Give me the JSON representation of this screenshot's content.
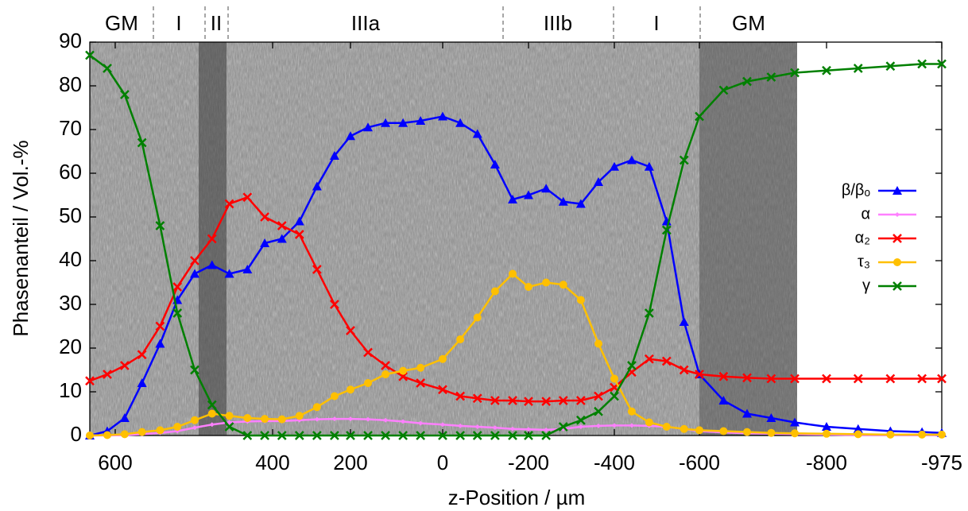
{
  "chart_data": {
    "type": "line",
    "zones": [
      "GM",
      "I",
      "II",
      "IIIa",
      "IIIb",
      "I",
      "GM"
    ],
    "xlabel": "z-Position / µm",
    "ylabel": "Phasenanteil / Vol.-%",
    "xlim": [
      632,
      -975
    ],
    "xticks": [
      600,
      400,
      200,
      0,
      -200,
      -400,
      -600,
      -800,
      -975
    ],
    "ylim": [
      0,
      90
    ],
    "yticks": [
      0,
      10,
      20,
      30,
      40,
      50,
      60,
      70,
      80,
      90
    ],
    "legend": "right",
    "x": [
      632,
      610,
      588,
      566,
      543,
      521,
      499,
      477,
      455,
      432,
      410,
      376,
      331,
      286,
      241,
      200,
      162,
      124,
      86,
      48,
      0,
      -41,
      -81,
      -122,
      -163,
      -200,
      -241,
      -281,
      -322,
      -363,
      -400,
      -441,
      -482,
      -523,
      -564,
      -600,
      -638,
      -675,
      -713,
      -750,
      -800,
      -848,
      -897,
      -945,
      -975
    ],
    "series": [
      {
        "name": "β/βₒ",
        "color": "#0000ff",
        "marker": "triangle",
        "values": [
          0,
          1,
          4,
          12,
          21,
          31,
          37,
          39,
          37,
          38,
          44,
          45,
          49,
          57,
          64,
          68.5,
          70.5,
          71.5,
          71.5,
          72,
          73,
          71.5,
          69,
          62,
          54,
          55,
          56.5,
          53.5,
          53,
          58,
          61.5,
          63,
          61.5,
          49,
          26,
          14,
          8,
          5,
          4,
          3,
          2,
          1.5,
          1,
          0.8,
          0.6
        ]
      },
      {
        "name": "α",
        "color": "#ff80ff",
        "marker": "diamond",
        "values": [
          0,
          0,
          0.1,
          0.3,
          0.6,
          1,
          1.8,
          2.5,
          3,
          3.2,
          3.3,
          3.3,
          3.5,
          3.7,
          3.8,
          3.8,
          3.7,
          3.5,
          3.2,
          2.8,
          2.5,
          2.2,
          2,
          1.8,
          1.5,
          1.4,
          1.3,
          1.5,
          2,
          2.2,
          2.3,
          2.3,
          2.2,
          2,
          1.5,
          1,
          0.7,
          0.5,
          0.4,
          0.3,
          0.2,
          0.1,
          0.1,
          0.1,
          0.1
        ]
      },
      {
        "name": "α₂",
        "color": "#ff0000",
        "marker": "cross",
        "values": [
          12.5,
          14,
          16,
          18.5,
          25,
          34,
          40,
          45,
          53,
          54.5,
          50,
          48,
          46,
          38,
          30,
          24,
          19,
          16,
          13.5,
          12,
          10.5,
          9,
          8.5,
          8,
          8,
          7.8,
          7.8,
          8,
          8,
          9,
          11,
          14.5,
          17.5,
          17,
          15,
          14,
          13.5,
          13.2,
          13,
          13,
          13,
          13,
          13,
          13,
          13
        ]
      },
      {
        "name": "τ₃",
        "color": "#ffc000",
        "marker": "circle",
        "values": [
          0,
          0.1,
          0.3,
          0.8,
          1.2,
          2,
          3.5,
          5,
          4.5,
          4,
          3.8,
          3.7,
          4.5,
          6.5,
          9,
          10.5,
          12,
          14,
          14.8,
          15.5,
          17.5,
          22,
          27,
          33,
          37,
          34,
          35,
          34.5,
          31,
          21,
          13,
          5.5,
          3,
          2,
          1.5,
          1.2,
          1,
          0.8,
          0.6,
          0.5,
          0.4,
          0.3,
          0.2,
          0.2,
          0.2
        ]
      },
      {
        "name": "γ",
        "color": "#008000",
        "marker": "cross",
        "values": [
          87,
          84,
          78,
          67,
          48,
          28,
          15,
          7,
          2,
          0,
          0,
          0,
          0,
          0,
          0,
          0,
          0,
          0,
          0,
          0,
          0,
          0,
          0,
          0,
          0,
          0,
          0,
          2,
          3.5,
          5.5,
          9,
          16,
          28,
          47,
          63,
          73,
          79,
          81,
          82,
          83,
          83.5,
          84,
          84.5,
          85,
          85
        ]
      }
    ]
  }
}
